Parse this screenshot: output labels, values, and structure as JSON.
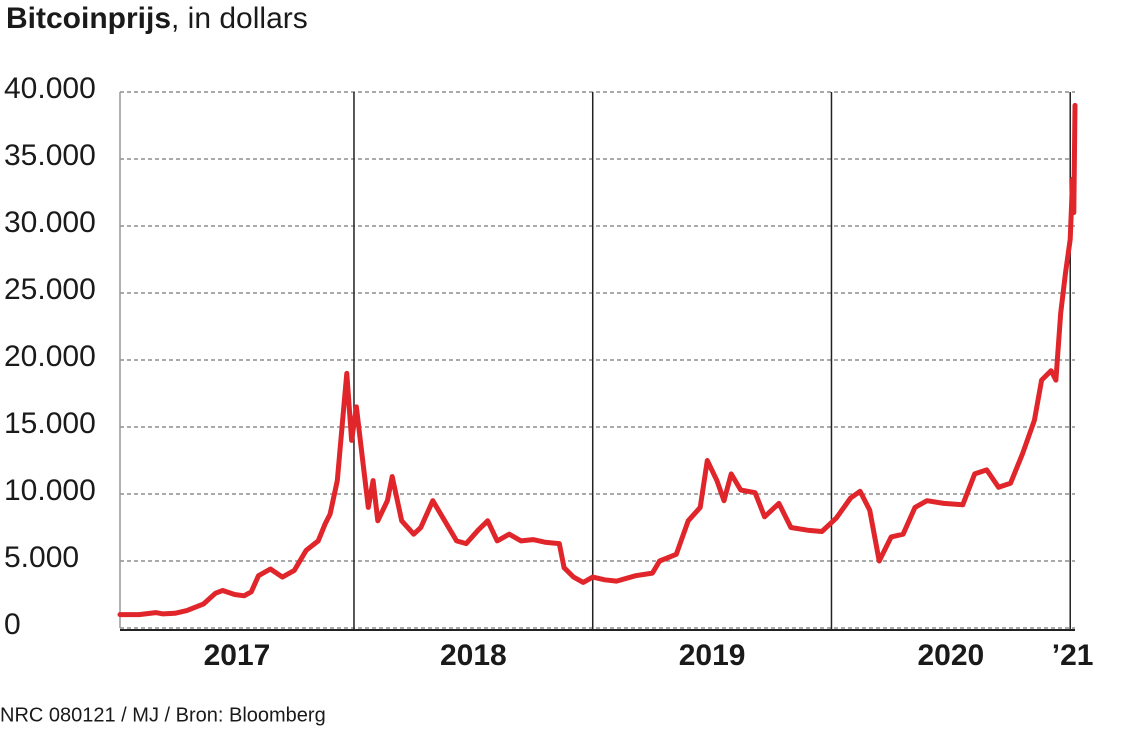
{
  "chart_data": {
    "type": "line",
    "title": "Bitcoinprijs",
    "subtitle": ", in dollars",
    "source": "NRC 080121 / MJ / Bron: Bloomberg",
    "year_labels": [
      "2017",
      "2018",
      "2019",
      "2020",
      "’21"
    ],
    "xlim": [
      2017.02,
      2021.02
    ],
    "xticks": [
      2018,
      2019,
      2020,
      2021
    ],
    "ylim": [
      0,
      40000
    ],
    "yticks": [
      0,
      {
        "value": 5000,
        "label": "5.000"
      },
      {
        "value": 10000,
        "label": "10.000"
      },
      {
        "value": 15000,
        "label": "15.000"
      },
      {
        "value": 20000,
        "label": "20.000"
      },
      {
        "value": 25000,
        "label": "25.000"
      },
      {
        "value": 30000,
        "label": "30.000"
      },
      {
        "value": 35000,
        "label": "35.000"
      },
      {
        "value": 40000,
        "label": "40.000"
      }
    ],
    "grid": true,
    "x": [
      2017.02,
      2017.1,
      2017.17,
      2017.2,
      2017.25,
      2017.3,
      2017.37,
      2017.42,
      2017.45,
      2017.5,
      2017.54,
      2017.57,
      2017.6,
      2017.65,
      2017.7,
      2017.75,
      2017.8,
      2017.85,
      2017.88,
      2017.9,
      2017.93,
      2017.96,
      2017.97,
      2017.99,
      2018.01,
      2018.03,
      2018.06,
      2018.08,
      2018.1,
      2018.14,
      2018.16,
      2018.2,
      2018.25,
      2018.28,
      2018.33,
      2018.38,
      2018.43,
      2018.47,
      2018.52,
      2018.56,
      2018.6,
      2018.65,
      2018.7,
      2018.75,
      2018.8,
      2018.86,
      2018.88,
      2018.92,
      2018.96,
      2019.0,
      2019.05,
      2019.1,
      2019.18,
      2019.25,
      2019.28,
      2019.35,
      2019.4,
      2019.45,
      2019.48,
      2019.52,
      2019.55,
      2019.58,
      2019.62,
      2019.68,
      2019.72,
      2019.78,
      2019.83,
      2019.9,
      2019.96,
      2020.02,
      2020.08,
      2020.12,
      2020.16,
      2020.2,
      2020.25,
      2020.3,
      2020.35,
      2020.4,
      2020.47,
      2020.55,
      2020.6,
      2020.65,
      2020.7,
      2020.75,
      2020.8,
      2020.85,
      2020.88,
      2020.92,
      2020.94,
      2020.96,
      2020.98,
      2021.0,
      2021.01,
      2021.015,
      2021.02
    ],
    "series": [
      {
        "name": "Bitcoinprijs",
        "color": "#e0262a",
        "values": [
          1000,
          1000,
          1150,
          1050,
          1100,
          1300,
          1800,
          2600,
          2800,
          2500,
          2400,
          2700,
          3900,
          4400,
          3800,
          4300,
          5800,
          6500,
          7800,
          8500,
          11000,
          17000,
          19000,
          14000,
          16500,
          13500,
          9000,
          11000,
          8000,
          9500,
          11300,
          8000,
          7000,
          7500,
          9500,
          8000,
          6500,
          6300,
          7300,
          8000,
          6500,
          7000,
          6500,
          6600,
          6400,
          6300,
          4500,
          3800,
          3400,
          3800,
          3600,
          3500,
          3900,
          4100,
          5000,
          5500,
          8000,
          9000,
          12500,
          11000,
          9500,
          11500,
          10300,
          10100,
          8300,
          9300,
          7500,
          7300,
          7200,
          8200,
          9700,
          10200,
          8800,
          5000,
          6800,
          7000,
          9000,
          9500,
          9300,
          9200,
          11500,
          11800,
          10500,
          10800,
          13000,
          15500,
          18500,
          19200,
          18500,
          23500,
          26500,
          29000,
          33500,
          31000,
          39000
        ]
      }
    ]
  }
}
